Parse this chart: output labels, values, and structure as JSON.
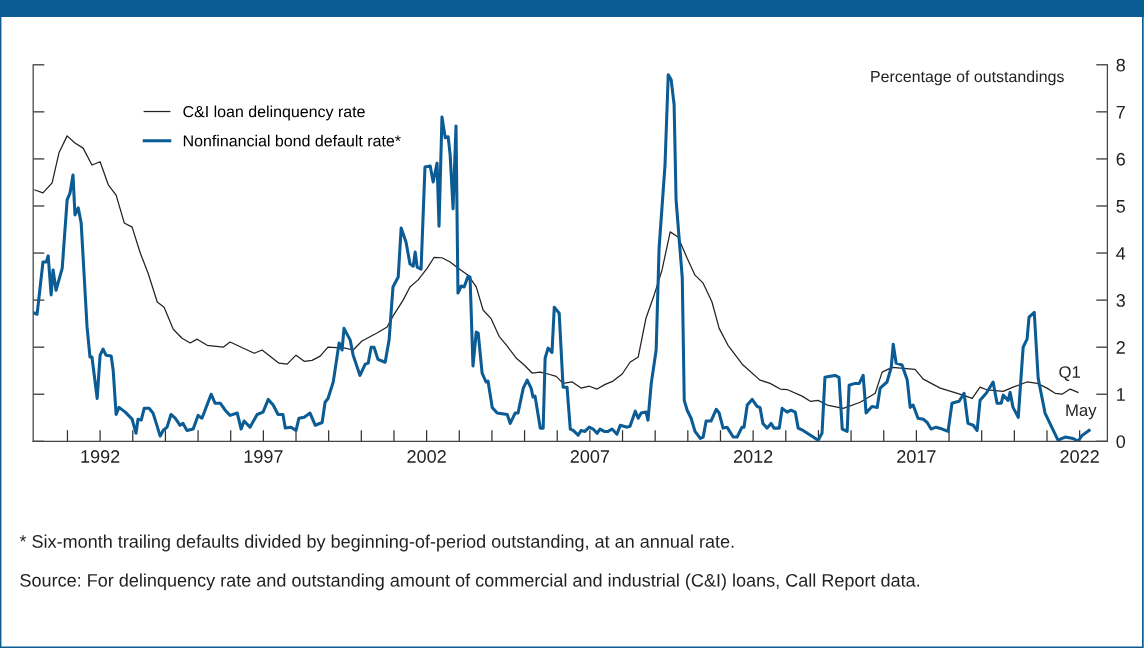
{
  "chart_data": {
    "type": "line",
    "ylabel": "Percentage of outstandings",
    "xlim": [
      1989.95,
      2022.85
    ],
    "xticks": [
      {
        "value": 1991,
        "label": null
      },
      {
        "value": 1992,
        "label": "1992"
      },
      {
        "value": 1993,
        "label": null
      },
      {
        "value": 1994,
        "label": null
      },
      {
        "value": 1995,
        "label": null
      },
      {
        "value": 1996,
        "label": null
      },
      {
        "value": 1997,
        "label": "1997"
      },
      {
        "value": 1998,
        "label": null
      },
      {
        "value": 1999,
        "label": null
      },
      {
        "value": 2000,
        "label": null
      },
      {
        "value": 2001,
        "label": null
      },
      {
        "value": 2002,
        "label": "2002"
      },
      {
        "value": 2003,
        "label": null
      },
      {
        "value": 2004,
        "label": null
      },
      {
        "value": 2005,
        "label": null
      },
      {
        "value": 2006,
        "label": null
      },
      {
        "value": 2007,
        "label": "2007"
      },
      {
        "value": 2008,
        "label": null
      },
      {
        "value": 2009,
        "label": null
      },
      {
        "value": 2010,
        "label": null
      },
      {
        "value": 2011,
        "label": null
      },
      {
        "value": 2012,
        "label": "2012"
      },
      {
        "value": 2013,
        "label": null
      },
      {
        "value": 2014,
        "label": null
      },
      {
        "value": 2015,
        "label": null
      },
      {
        "value": 2016,
        "label": null
      },
      {
        "value": 2017,
        "label": "2017"
      },
      {
        "value": 2018,
        "label": null
      },
      {
        "value": 2019,
        "label": null
      },
      {
        "value": 2020,
        "label": null
      },
      {
        "value": 2021,
        "label": null
      },
      {
        "value": 2022,
        "label": "2022"
      }
    ],
    "ylim": [
      0,
      8
    ],
    "yticks": [
      0,
      1,
      2,
      3,
      4,
      5,
      6,
      7,
      8
    ],
    "grid": false,
    "legend": "top left",
    "marker": "none",
    "line_style": "solid",
    "series": [
      {
        "name": "C&I loan delinquency rate",
        "color": "#222222",
        "x": [
          1990.0,
          1990.25,
          1990.53,
          1990.74,
          1990.99,
          1991.23,
          1991.48,
          1991.75,
          1992.0,
          1992.25,
          1992.49,
          1992.74,
          1992.98,
          1993.23,
          1993.47,
          1993.75,
          1993.96,
          1994.24,
          1994.51,
          1994.76,
          1994.97,
          1995.28,
          1995.77,
          1995.98,
          1996.72,
          1996.96,
          1997.48,
          1997.73,
          1998.0,
          1998.25,
          1998.49,
          1998.74,
          1998.98,
          1999.5,
          1999.75,
          2000.02,
          2000.48,
          2000.79,
          2000.97,
          2001.28,
          2001.49,
          2001.74,
          2002.02,
          2002.23,
          2002.47,
          2002.72,
          2002.96,
          2003.27,
          2003.52,
          2003.73,
          2003.98,
          2004.22,
          2004.47,
          2004.74,
          2004.99,
          2005.23,
          2005.48,
          2005.72,
          2005.97,
          2006.18,
          2006.46,
          2006.73,
          2006.98,
          2007.22,
          2007.47,
          2007.71,
          2007.99,
          2008.23,
          2008.48,
          2008.72,
          2008.97,
          2009.21,
          2009.46,
          2009.7,
          2009.98,
          2010.22,
          2010.47,
          2010.74,
          2010.96,
          2011.23,
          2011.69,
          2012.21,
          2012.52,
          2012.83,
          2013.04,
          2013.5,
          2013.75,
          2013.99,
          2014.27,
          2014.76,
          2015.28,
          2015.74,
          2015.95,
          2016.26,
          2016.96,
          2017.21,
          2017.73,
          2018.43,
          2018.71,
          2018.95,
          2019.17,
          2019.66,
          2019.96,
          2020.39,
          2020.7,
          2021.0,
          2021.25,
          2021.46,
          2021.71,
          2021.95
        ],
        "values": [
          5.34,
          5.28,
          5.49,
          6.13,
          6.49,
          6.34,
          6.23,
          5.87,
          5.94,
          5.45,
          5.23,
          4.64,
          4.55,
          4.0,
          3.57,
          2.96,
          2.85,
          2.38,
          2.19,
          2.09,
          2.17,
          2.04,
          2.0,
          2.11,
          1.87,
          1.94,
          1.66,
          1.64,
          1.83,
          1.7,
          1.72,
          1.81,
          2.0,
          1.98,
          1.94,
          2.13,
          2.3,
          2.43,
          2.66,
          3.0,
          3.28,
          3.43,
          3.68,
          3.91,
          3.9,
          3.81,
          3.68,
          3.53,
          3.28,
          2.79,
          2.6,
          2.23,
          2.02,
          1.77,
          1.62,
          1.45,
          1.47,
          1.43,
          1.38,
          1.23,
          1.26,
          1.13,
          1.17,
          1.11,
          1.21,
          1.28,
          1.43,
          1.68,
          1.79,
          2.62,
          3.11,
          3.64,
          4.45,
          4.34,
          3.89,
          3.53,
          3.36,
          2.96,
          2.4,
          2.04,
          1.62,
          1.3,
          1.23,
          1.11,
          1.1,
          0.96,
          0.85,
          0.87,
          0.77,
          0.7,
          0.83,
          1.02,
          1.47,
          1.57,
          1.53,
          1.32,
          1.13,
          0.98,
          0.91,
          1.15,
          1.09,
          1.06,
          1.15,
          1.26,
          1.23,
          1.13,
          1.02,
          1.0,
          1.11,
          1.04
        ]
      },
      {
        "name": "Nonfinancial bond default rate*",
        "color": "#0b5c94",
        "x": [
          1990.0,
          1990.07,
          1990.25,
          1990.35,
          1990.41,
          1990.5,
          1990.56,
          1990.65,
          1990.84,
          1990.99,
          1991.08,
          1991.17,
          1991.23,
          1991.33,
          1991.42,
          1991.6,
          1991.69,
          1991.75,
          1991.91,
          1992.0,
          1992.09,
          1992.18,
          1992.34,
          1992.4,
          1992.49,
          1992.58,
          1992.77,
          1992.98,
          1993.1,
          1993.16,
          1993.26,
          1993.35,
          1993.5,
          1993.62,
          1993.72,
          1993.84,
          1993.93,
          1994.05,
          1994.17,
          1994.3,
          1994.45,
          1994.54,
          1994.66,
          1994.85,
          1995.0,
          1995.12,
          1995.4,
          1995.52,
          1995.68,
          1995.83,
          1995.98,
          1996.2,
          1996.32,
          1996.41,
          1996.59,
          1996.81,
          1996.99,
          1997.15,
          1997.3,
          1997.45,
          1997.6,
          1997.67,
          1997.85,
          1998.0,
          1998.09,
          1998.25,
          1998.43,
          1998.59,
          1998.8,
          1998.89,
          1998.98,
          1999.14,
          1999.32,
          1999.41,
          1999.47,
          1999.66,
          1999.75,
          1999.96,
          2000.12,
          2000.21,
          2000.3,
          2000.39,
          2000.51,
          2000.73,
          2000.85,
          2000.97,
          2001.13,
          2001.22,
          2001.37,
          2001.49,
          2001.59,
          2001.65,
          2001.71,
          2001.83,
          2001.95,
          2002.11,
          2002.2,
          2002.32,
          2002.38,
          2002.47,
          2002.57,
          2002.66,
          2002.72,
          2002.81,
          2002.9,
          2002.96,
          2003.06,
          2003.15,
          2003.27,
          2003.33,
          2003.42,
          2003.52,
          2003.58,
          2003.7,
          2003.82,
          2003.88,
          2004.01,
          2004.16,
          2004.47,
          2004.56,
          2004.71,
          2004.8,
          2004.96,
          2005.08,
          2005.2,
          2005.26,
          2005.32,
          2005.48,
          2005.57,
          2005.63,
          2005.72,
          2005.84,
          2005.91,
          2006.06,
          2006.18,
          2006.3,
          2006.4,
          2006.49,
          2006.64,
          2006.73,
          2006.85,
          2006.98,
          2007.1,
          2007.22,
          2007.31,
          2007.44,
          2007.56,
          2007.68,
          2007.83,
          2007.93,
          2008.14,
          2008.23,
          2008.39,
          2008.48,
          2008.57,
          2008.72,
          2008.78,
          2008.88,
          2009.03,
          2009.12,
          2009.3,
          2009.4,
          2009.49,
          2009.58,
          2009.64,
          2009.83,
          2009.89,
          2009.98,
          2010.1,
          2010.22,
          2010.38,
          2010.47,
          2010.56,
          2010.71,
          2010.87,
          2010.96,
          2011.08,
          2011.2,
          2011.39,
          2011.51,
          2011.66,
          2011.72,
          2011.82,
          2011.97,
          2012.12,
          2012.21,
          2012.3,
          2012.43,
          2012.55,
          2012.64,
          2012.8,
          2012.89,
          2013.04,
          2013.16,
          2013.29,
          2013.38,
          2013.53,
          2013.84,
          2013.99,
          2014.11,
          2014.2,
          2014.36,
          2014.51,
          2014.63,
          2014.73,
          2014.88,
          2014.94,
          2015.12,
          2015.25,
          2015.37,
          2015.46,
          2015.64,
          2015.8,
          2015.89,
          2016.1,
          2016.23,
          2016.29,
          2016.38,
          2016.56,
          2016.72,
          2016.81,
          2016.9,
          2017.05,
          2017.21,
          2017.33,
          2017.45,
          2017.6,
          2017.79,
          2017.97,
          2018.09,
          2018.19,
          2018.31,
          2018.46,
          2018.58,
          2018.74,
          2018.86,
          2018.95,
          2019.14,
          2019.35,
          2019.47,
          2019.6,
          2019.66,
          2019.81,
          2019.87,
          2019.96,
          2020.12,
          2020.27,
          2020.39,
          2020.45,
          2020.61,
          2020.73,
          2020.94,
          2021.34,
          2021.46,
          2021.56,
          2021.8,
          2021.95,
          2022.08,
          2022.17,
          2022.29
        ],
        "values": [
          2.72,
          2.7,
          3.81,
          3.81,
          3.94,
          3.11,
          3.64,
          3.21,
          3.68,
          5.13,
          5.28,
          5.66,
          4.81,
          4.96,
          4.64,
          2.43,
          1.79,
          1.79,
          0.91,
          1.83,
          1.96,
          1.83,
          1.81,
          1.51,
          0.57,
          0.72,
          0.62,
          0.47,
          0.17,
          0.47,
          0.45,
          0.7,
          0.7,
          0.6,
          0.38,
          0.11,
          0.23,
          0.3,
          0.57,
          0.49,
          0.34,
          0.38,
          0.23,
          0.26,
          0.55,
          0.49,
          1.0,
          0.81,
          0.81,
          0.66,
          0.55,
          0.6,
          0.26,
          0.43,
          0.3,
          0.57,
          0.62,
          0.89,
          0.77,
          0.57,
          0.57,
          0.28,
          0.3,
          0.23,
          0.49,
          0.51,
          0.6,
          0.34,
          0.4,
          0.83,
          0.91,
          1.26,
          2.09,
          1.94,
          2.4,
          2.15,
          1.83,
          1.4,
          1.64,
          1.66,
          2.0,
          2.0,
          1.74,
          1.68,
          2.15,
          3.28,
          3.49,
          4.53,
          4.23,
          3.77,
          3.72,
          4.02,
          3.7,
          3.66,
          5.83,
          5.85,
          5.51,
          5.91,
          4.57,
          6.89,
          6.45,
          6.47,
          6.09,
          4.94,
          6.7,
          3.15,
          3.3,
          3.28,
          3.51,
          3.49,
          1.6,
          2.32,
          2.3,
          1.45,
          1.26,
          1.28,
          0.72,
          0.6,
          0.57,
          0.38,
          0.6,
          0.6,
          1.13,
          1.3,
          1.13,
          0.94,
          0.96,
          0.28,
          0.28,
          1.77,
          1.98,
          1.89,
          2.85,
          2.72,
          1.15,
          1.15,
          0.26,
          0.23,
          0.13,
          0.23,
          0.21,
          0.3,
          0.26,
          0.17,
          0.26,
          0.21,
          0.21,
          0.26,
          0.15,
          0.34,
          0.3,
          0.32,
          0.64,
          0.49,
          0.6,
          0.62,
          0.45,
          1.23,
          1.94,
          4.11,
          5.85,
          7.79,
          7.68,
          7.15,
          5.13,
          3.47,
          0.87,
          0.66,
          0.49,
          0.21,
          0.06,
          0.09,
          0.43,
          0.43,
          0.68,
          0.6,
          0.28,
          0.3,
          0.09,
          0.09,
          0.3,
          0.3,
          0.77,
          0.89,
          0.74,
          0.72,
          0.38,
          0.28,
          0.38,
          0.28,
          0.28,
          0.7,
          0.62,
          0.66,
          0.62,
          0.28,
          0.23,
          0.09,
          0.02,
          0.17,
          1.36,
          1.38,
          1.4,
          1.36,
          0.26,
          0.21,
          1.19,
          1.23,
          1.23,
          1.4,
          0.6,
          0.74,
          0.72,
          1.13,
          1.26,
          1.57,
          2.06,
          1.66,
          1.62,
          1.3,
          0.72,
          0.77,
          0.49,
          0.47,
          0.4,
          0.26,
          0.3,
          0.26,
          0.21,
          0.81,
          0.83,
          0.85,
          1.02,
          0.38,
          0.34,
          0.23,
          0.87,
          1.02,
          1.26,
          0.81,
          0.81,
          0.98,
          0.87,
          1.04,
          0.72,
          0.51,
          2.0,
          2.17,
          2.64,
          2.74,
          1.34,
          0.6,
          0.02,
          0.06,
          0.09,
          0.06,
          0.0,
          0.13,
          0.17,
          0.23
        ]
      }
    ],
    "annotations": [
      {
        "text": "Q1",
        "x": 2021.95,
        "y": 1.04
      },
      {
        "text": "May",
        "x": 2022.29,
        "y": 0.23
      },
      "* Six-month trailing defaults divided by beginning-of-period outstanding, at an annual rate.",
      "Source: For delinquency rate and outstanding amount of commercial and industrial (C&I) loans, Call Report data."
    ]
  }
}
